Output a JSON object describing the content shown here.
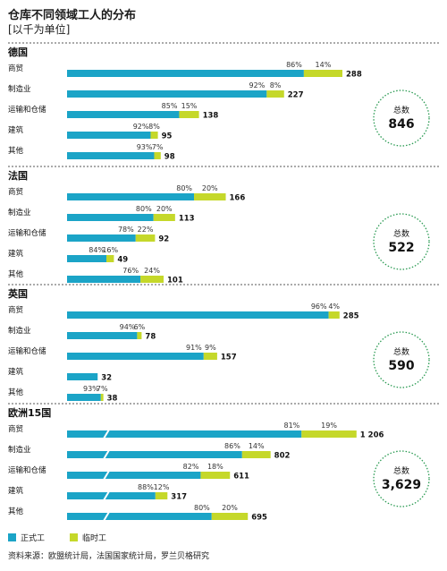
{
  "title": "仓库不同领域工人的分布",
  "subtitle": "[以千为单位]",
  "total_label": "总数",
  "legend": [
    {
      "label": "正式工",
      "color": "#1ba4c7"
    },
    {
      "label": "临时工",
      "color": "#c5d82a"
    }
  ],
  "source": "资料来源：欧盟统计局，法国国家统计局，罗兰贝格研究",
  "colors": {
    "permanent": "#1ba4c7",
    "temporary": "#c5d82a",
    "total_circle": "#2a9a52"
  },
  "chart_data": {
    "type": "bar",
    "stacked": true,
    "orientation": "horizontal",
    "title": "仓库不同领域工人的分布",
    "subtitle": "[以千为单位]",
    "series_names": [
      "正式工",
      "临时工"
    ],
    "panels": [
      {
        "name": "德国",
        "total": "846",
        "rows": [
          {
            "label": "商贸",
            "total": 288,
            "total_text": "288",
            "perm_pct": 86,
            "temp_pct": 14
          },
          {
            "label": "制造业",
            "total": 227,
            "total_text": "227",
            "perm_pct": 92,
            "temp_pct": 8
          },
          {
            "label": "运输和仓储",
            "total": 138,
            "total_text": "138",
            "perm_pct": 85,
            "temp_pct": 15
          },
          {
            "label": "建筑",
            "total": 95,
            "total_text": "95",
            "perm_pct": 92,
            "temp_pct": 8
          },
          {
            "label": "其他",
            "total": 98,
            "total_text": "98",
            "perm_pct": 93,
            "temp_pct": 7
          }
        ]
      },
      {
        "name": "法国",
        "total": "522",
        "rows": [
          {
            "label": "商贸",
            "total": 166,
            "total_text": "166",
            "perm_pct": 80,
            "temp_pct": 20
          },
          {
            "label": "制造业",
            "total": 113,
            "total_text": "113",
            "perm_pct": 80,
            "temp_pct": 20
          },
          {
            "label": "运输和仓储",
            "total": 92,
            "total_text": "92",
            "perm_pct": 78,
            "temp_pct": 22
          },
          {
            "label": "建筑",
            "total": 49,
            "total_text": "49",
            "perm_pct": 84,
            "temp_pct": 16
          },
          {
            "label": "其他",
            "total": 101,
            "total_text": "101",
            "perm_pct": 76,
            "temp_pct": 24
          }
        ]
      },
      {
        "name": "英国",
        "total": "590",
        "rows": [
          {
            "label": "商贸",
            "total": 285,
            "total_text": "285",
            "perm_pct": 96,
            "temp_pct": 4
          },
          {
            "label": "制造业",
            "total": 78,
            "total_text": "78",
            "perm_pct": 94,
            "temp_pct": 6
          },
          {
            "label": "运输和仓储",
            "total": 157,
            "total_text": "157",
            "perm_pct": 91,
            "temp_pct": 9
          },
          {
            "label": "建筑",
            "total": 32,
            "total_text": "32",
            "perm_pct": null,
            "temp_pct": null
          },
          {
            "label": "其他",
            "total": 38,
            "total_text": "38",
            "perm_pct": 93,
            "temp_pct": 7
          }
        ]
      },
      {
        "name": "欧洲15国",
        "total": "3,629",
        "broken_axis": true,
        "rows": [
          {
            "label": "商贸",
            "total": 1206,
            "total_text": "1 206",
            "perm_pct": 81,
            "temp_pct": 19
          },
          {
            "label": "制造业",
            "total": 802,
            "total_text": "802",
            "perm_pct": 86,
            "temp_pct": 14
          },
          {
            "label": "运输和仓储",
            "total": 611,
            "total_text": "611",
            "perm_pct": 82,
            "temp_pct": 18
          },
          {
            "label": "建筑",
            "total": 317,
            "total_text": "317",
            "perm_pct": 88,
            "temp_pct": 12
          },
          {
            "label": "其他",
            "total": 695,
            "total_text": "695",
            "perm_pct": 80,
            "temp_pct": 20
          }
        ]
      }
    ]
  }
}
